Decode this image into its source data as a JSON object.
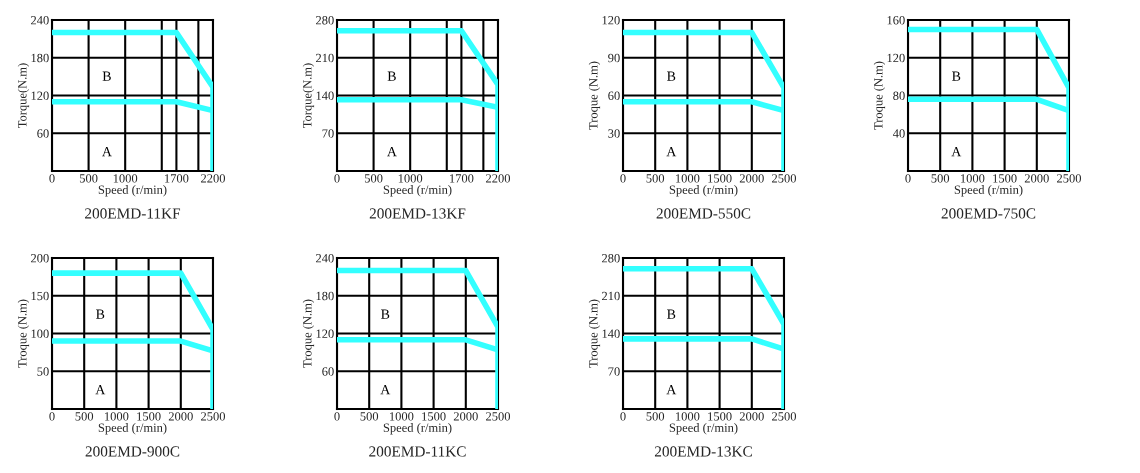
{
  "chart_data": [
    {
      "type": "line",
      "title": "200EMD-11KF",
      "xlabel": "Speed (r/min)",
      "ylabel": "Torque(N.m)",
      "xlim": [
        0,
        2200
      ],
      "ylim": [
        0,
        240
      ],
      "xticks": [
        0,
        500,
        1000,
        1700,
        2200
      ],
      "yticks": [
        60,
        120,
        180,
        240
      ],
      "grid": true,
      "ref_lines": [
        {
          "axis": "x",
          "value": 1500,
          "color": "#000000"
        },
        {
          "axis": "x",
          "value": 2000,
          "color": "#000000"
        }
      ],
      "series": [
        {
          "color": "#33ffff",
          "x": [
            0,
            1700,
            2200,
            2200
          ],
          "values": [
            220,
            220,
            133,
            0
          ]
        },
        {
          "color": "#33ffff",
          "x": [
            0,
            1700,
            2200
          ],
          "values": [
            110,
            110,
            96
          ]
        }
      ],
      "annotations": [
        "A",
        "B"
      ]
    },
    {
      "type": "line",
      "title": "200EMD-13KF",
      "xlabel": "Speed (r/min)",
      "ylabel": "Torque(N.m)",
      "xlim": [
        0,
        2200
      ],
      "ylim": [
        0,
        280
      ],
      "xticks": [
        0,
        500,
        1000,
        1700,
        2200
      ],
      "yticks": [
        70,
        140,
        210,
        280
      ],
      "grid": true,
      "ref_lines": [
        {
          "axis": "x",
          "value": 1500,
          "color": "#000000"
        },
        {
          "axis": "x",
          "value": 2000,
          "color": "#000000"
        }
      ],
      "series": [
        {
          "color": "#33ffff",
          "x": [
            0,
            1700,
            2200,
            2200
          ],
          "values": [
            260,
            260,
            160,
            0
          ]
        },
        {
          "color": "#33ffff",
          "x": [
            0,
            1700,
            2200
          ],
          "values": [
            132,
            132,
            118
          ]
        }
      ],
      "annotations": [
        "A",
        "B"
      ]
    },
    {
      "type": "line",
      "title": "200EMD-550C",
      "xlabel": "Speed (r/min)",
      "ylabel": "Troque (N.m)",
      "xlim": [
        0,
        2500
      ],
      "ylim": [
        0,
        120
      ],
      "xticks": [
        0,
        500,
        1000,
        1500,
        2000,
        2500
      ],
      "yticks": [
        30,
        60,
        90,
        120
      ],
      "grid": true,
      "series": [
        {
          "color": "#33ffff",
          "x": [
            0,
            2000,
            2500,
            2500
          ],
          "values": [
            110,
            110,
            66,
            0
          ]
        },
        {
          "color": "#33ffff",
          "x": [
            0,
            2000,
            2500
          ],
          "values": [
            55,
            55,
            48
          ]
        }
      ],
      "annotations": [
        "A",
        "B"
      ]
    },
    {
      "type": "line",
      "title": "200EMD-750C",
      "xlabel": "Speed (r/min)",
      "ylabel": "Troque (N.m)",
      "xlim": [
        0,
        2500
      ],
      "ylim": [
        0,
        160
      ],
      "xticks": [
        0,
        500,
        1000,
        1500,
        2000,
        2500
      ],
      "yticks": [
        40,
        80,
        120,
        160
      ],
      "grid": true,
      "series": [
        {
          "color": "#33ffff",
          "x": [
            0,
            2000,
            2500,
            2500
          ],
          "values": [
            150,
            150,
            88,
            0
          ]
        },
        {
          "color": "#33ffff",
          "x": [
            0,
            2000,
            2500
          ],
          "values": [
            76,
            76,
            64
          ]
        }
      ],
      "annotations": [
        "A",
        "B"
      ]
    },
    {
      "type": "line",
      "title": "200EMD-900C",
      "xlabel": "Speed (r/min)",
      "ylabel": "Troque (N.m)",
      "xlim": [
        0,
        2500
      ],
      "ylim": [
        0,
        200
      ],
      "xticks": [
        0,
        500,
        1000,
        1500,
        2000,
        2500
      ],
      "yticks": [
        50,
        100,
        150,
        200
      ],
      "grid": true,
      "series": [
        {
          "color": "#33ffff",
          "x": [
            0,
            2000,
            2500,
            2500
          ],
          "values": [
            180,
            180,
            105,
            0
          ]
        },
        {
          "color": "#33ffff",
          "x": [
            0,
            2000,
            2500
          ],
          "values": [
            90,
            90,
            77
          ]
        }
      ],
      "annotations": [
        "A",
        "B"
      ]
    },
    {
      "type": "line",
      "title": "200EMD-11KC",
      "xlabel": "Speed (r/min)",
      "ylabel": "Troque (N.m)",
      "xlim": [
        0,
        2500
      ],
      "ylim": [
        0,
        240
      ],
      "xticks": [
        0,
        500,
        1000,
        1500,
        2000,
        2500
      ],
      "yticks": [
        60,
        120,
        180,
        240
      ],
      "grid": true,
      "series": [
        {
          "color": "#33ffff",
          "x": [
            0,
            2000,
            2500,
            2500
          ],
          "values": [
            220,
            220,
            130,
            0
          ]
        },
        {
          "color": "#33ffff",
          "x": [
            0,
            2000,
            2500
          ],
          "values": [
            110,
            110,
            94
          ]
        }
      ],
      "annotations": [
        "A",
        "B"
      ]
    },
    {
      "type": "line",
      "title": "200EMD-13KC",
      "xlabel": "Speed (r/min)",
      "ylabel": "Troque (N.m)",
      "xlim": [
        0,
        2500
      ],
      "ylim": [
        0,
        280
      ],
      "xticks": [
        0,
        500,
        1000,
        1500,
        2000,
        2500
      ],
      "yticks": [
        70,
        140,
        210,
        280
      ],
      "grid": true,
      "series": [
        {
          "color": "#33ffff",
          "x": [
            0,
            2000,
            2500,
            2500
          ],
          "values": [
            260,
            260,
            157,
            0
          ]
        },
        {
          "color": "#33ffff",
          "x": [
            0,
            2000,
            2500
          ],
          "values": [
            130,
            130,
            111
          ]
        }
      ],
      "annotations": [
        "A",
        "B"
      ]
    }
  ]
}
